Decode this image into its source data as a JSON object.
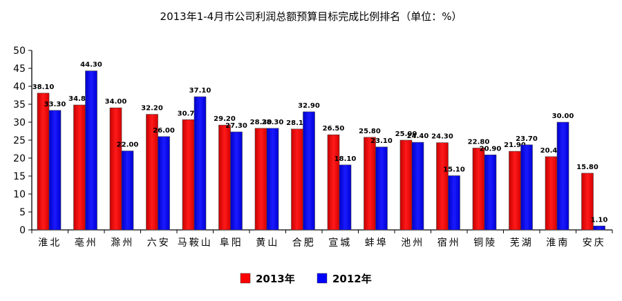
{
  "chart_data": {
    "type": "bar",
    "title": "2013年1-4月市公司利润总额预算目标完成比例排名（单位：%）",
    "xlabel": "",
    "ylabel": "",
    "ylim": [
      0,
      50
    ],
    "yticks": [
      0,
      5,
      10,
      15,
      20,
      25,
      30,
      35,
      40,
      45,
      50
    ],
    "grid": false,
    "legend_position": "bottom-center",
    "categories": [
      "淮北",
      "亳州",
      "滁州",
      "六安",
      "马鞍山",
      "阜阳",
      "黄山",
      "合肥",
      "宣城",
      "蚌埠",
      "池州",
      "宿州",
      "铜陵",
      "芜湖",
      "淮南",
      "安庆"
    ],
    "series": [
      {
        "name": "2013年",
        "color": "#ff0000",
        "values": [
          38.1,
          34.8,
          34.0,
          32.2,
          30.7,
          29.2,
          28.3,
          28.1,
          26.5,
          25.8,
          25.0,
          24.3,
          22.8,
          21.9,
          20.4,
          15.8
        ]
      },
      {
        "name": "2012年",
        "color": "#0000ff",
        "values": [
          33.3,
          44.3,
          22.0,
          26.0,
          37.1,
          27.3,
          28.3,
          32.9,
          18.1,
          23.1,
          24.4,
          15.1,
          20.9,
          23.7,
          30.0,
          1.1
        ]
      }
    ]
  }
}
